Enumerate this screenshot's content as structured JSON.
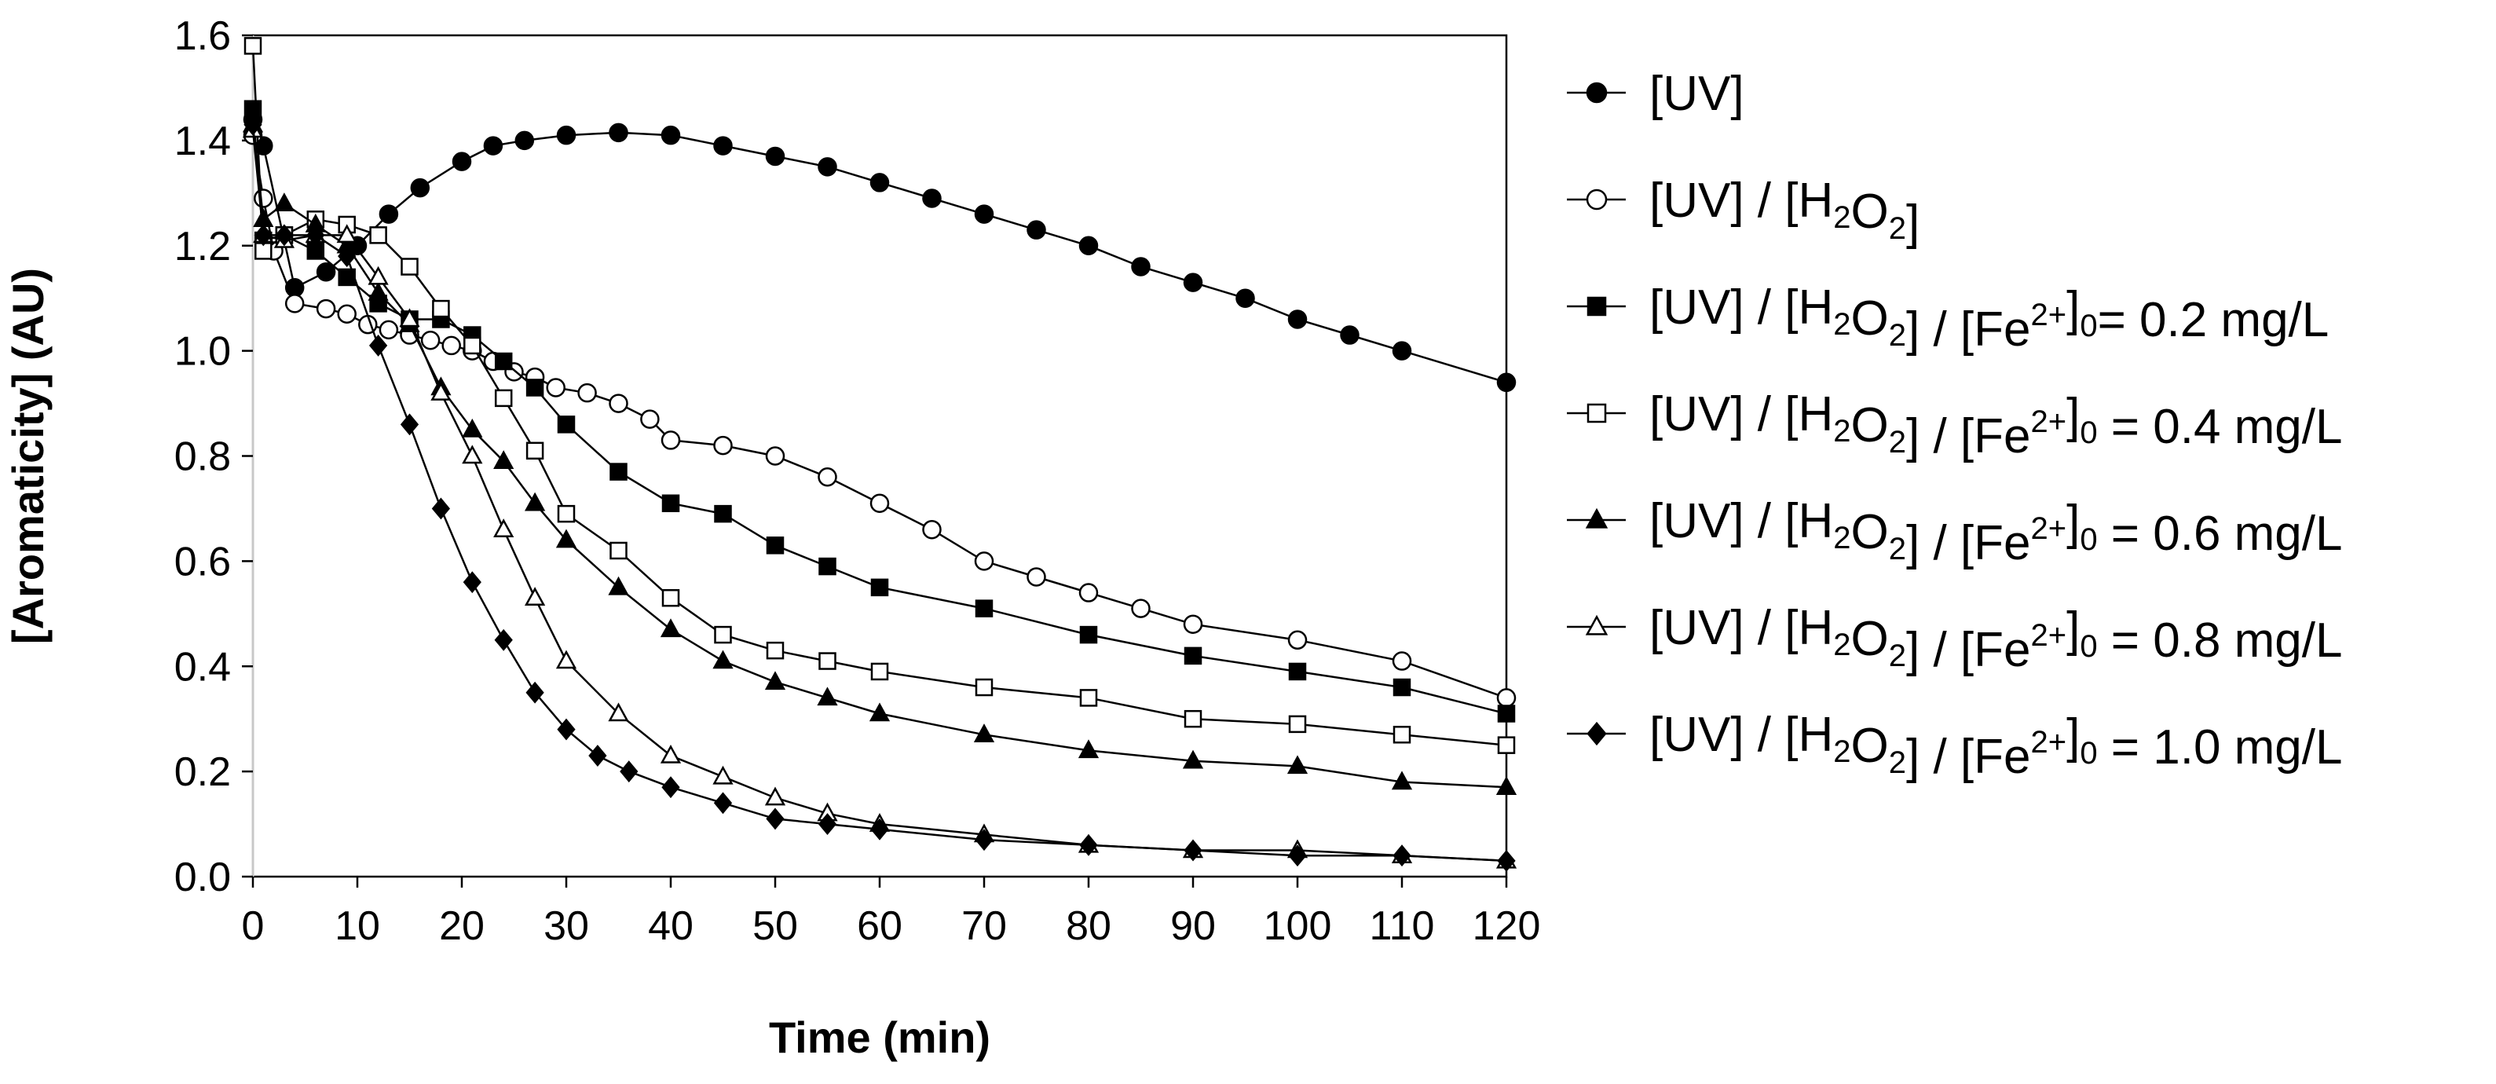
{
  "chart_data": {
    "type": "line",
    "title": "",
    "xlabel": "Time (min)",
    "ylabel": "[Aromaticity] (AU)",
    "xlim": [
      0,
      120
    ],
    "ylim": [
      0.0,
      1.6
    ],
    "xticks": [
      "0",
      "10",
      "20",
      "30",
      "40",
      "50",
      "60",
      "70",
      "80",
      "90",
      "100",
      "110",
      "120"
    ],
    "yticks": [
      "0.0",
      "0.2",
      "0.4",
      "0.6",
      "0.8",
      "1.0",
      "1.2",
      "1.4",
      "1.6"
    ],
    "grid": false,
    "legend_position": "right",
    "series": [
      {
        "name": "[UV]",
        "legend": [
          {
            "t": "[UV]"
          }
        ],
        "marker": "circle",
        "filled": true,
        "x": [
          0,
          1,
          4,
          7,
          10,
          13,
          16,
          20,
          23,
          26,
          30,
          35,
          40,
          45,
          50,
          55,
          60,
          65,
          70,
          75,
          80,
          85,
          90,
          95,
          100,
          105,
          110,
          120
        ],
        "y": [
          1.44,
          1.39,
          1.12,
          1.15,
          1.2,
          1.26,
          1.31,
          1.36,
          1.39,
          1.4,
          1.41,
          1.415,
          1.41,
          1.39,
          1.37,
          1.35,
          1.32,
          1.29,
          1.26,
          1.23,
          1.2,
          1.16,
          1.13,
          1.1,
          1.06,
          1.03,
          1.0,
          0.94
        ]
      },
      {
        "name": "[UV] / [H2O2]",
        "legend": [
          {
            "t": "[UV] / [H"
          },
          {
            "t": "2",
            "sub": true
          },
          {
            "t": "O"
          },
          {
            "t": "2",
            "sub": true
          },
          {
            "t": "]"
          }
        ],
        "marker": "circle",
        "filled": false,
        "x": [
          0,
          1,
          2,
          4,
          7,
          9,
          11,
          13,
          15,
          17,
          19,
          21,
          23,
          25,
          27,
          29,
          32,
          35,
          38,
          40,
          45,
          50,
          55,
          60,
          65,
          70,
          75,
          80,
          85,
          90,
          100,
          110,
          120
        ],
        "y": [
          1.41,
          1.29,
          1.19,
          1.09,
          1.08,
          1.07,
          1.05,
          1.04,
          1.03,
          1.02,
          1.01,
          1.0,
          0.98,
          0.96,
          0.95,
          0.93,
          0.92,
          0.9,
          0.87,
          0.83,
          0.82,
          0.8,
          0.76,
          0.71,
          0.66,
          0.6,
          0.57,
          0.54,
          0.51,
          0.48,
          0.45,
          0.41,
          0.34
        ]
      },
      {
        "name": "[UV] / [H2O2] / [Fe2+]0= 0.2 mg/L",
        "legend": [
          {
            "t": "[UV] / [H"
          },
          {
            "t": "2",
            "sub": true
          },
          {
            "t": "O"
          },
          {
            "t": "2",
            "sub": true
          },
          {
            "t": "] / [Fe"
          },
          {
            "t": "2+",
            "sup": true
          },
          {
            "t": "]"
          },
          {
            "t": "0",
            "sub": true
          },
          {
            "t": "= 0.2 mg/L"
          }
        ],
        "marker": "square",
        "filled": true,
        "x": [
          0,
          1,
          3,
          6,
          9,
          12,
          15,
          18,
          21,
          24,
          27,
          30,
          35,
          40,
          45,
          50,
          55,
          60,
          70,
          80,
          90,
          100,
          110,
          120
        ],
        "y": [
          1.46,
          1.21,
          1.22,
          1.19,
          1.14,
          1.09,
          1.06,
          1.06,
          1.03,
          0.98,
          0.93,
          0.86,
          0.77,
          0.71,
          0.69,
          0.63,
          0.59,
          0.55,
          0.51,
          0.46,
          0.42,
          0.39,
          0.36,
          0.31
        ]
      },
      {
        "name": "[UV] / [H2O2] / [Fe2+]0 = 0.4 mg/L",
        "legend": [
          {
            "t": "[UV] / [H"
          },
          {
            "t": "2",
            "sub": true
          },
          {
            "t": "O"
          },
          {
            "t": "2",
            "sub": true
          },
          {
            "t": "] / [Fe"
          },
          {
            "t": "2+",
            "sup": true
          },
          {
            "t": "]"
          },
          {
            "t": "0",
            "sub": true
          },
          {
            "t": " = 0.4 mg/L"
          }
        ],
        "marker": "square",
        "filled": false,
        "x": [
          0,
          1,
          3,
          6,
          9,
          12,
          15,
          18,
          21,
          24,
          27,
          30,
          35,
          40,
          45,
          50,
          55,
          60,
          70,
          80,
          90,
          100,
          110,
          120
        ],
        "y": [
          1.58,
          1.19,
          1.22,
          1.25,
          1.24,
          1.22,
          1.16,
          1.08,
          1.01,
          0.91,
          0.81,
          0.69,
          0.62,
          0.53,
          0.46,
          0.43,
          0.41,
          0.39,
          0.36,
          0.34,
          0.3,
          0.29,
          0.27,
          0.25
        ]
      },
      {
        "name": "[UV] / [H2O2] / [Fe2+]0 = 0.6 mg/L",
        "legend": [
          {
            "t": "[UV] / [H"
          },
          {
            "t": "2",
            "sub": true
          },
          {
            "t": "O"
          },
          {
            "t": "2",
            "sub": true
          },
          {
            "t": "] / [Fe"
          },
          {
            "t": "2+",
            "sup": true
          },
          {
            "t": "]"
          },
          {
            "t": "0",
            "sub": true
          },
          {
            "t": " = 0.6 mg/L"
          }
        ],
        "marker": "triangle",
        "filled": true,
        "x": [
          0,
          1,
          3,
          6,
          9,
          12,
          15,
          18,
          21,
          24,
          27,
          30,
          35,
          40,
          45,
          50,
          55,
          60,
          70,
          80,
          90,
          100,
          110,
          120
        ],
        "y": [
          1.43,
          1.25,
          1.28,
          1.24,
          1.2,
          1.11,
          1.05,
          0.93,
          0.85,
          0.79,
          0.71,
          0.64,
          0.55,
          0.47,
          0.41,
          0.37,
          0.34,
          0.31,
          0.27,
          0.24,
          0.22,
          0.21,
          0.18,
          0.17
        ]
      },
      {
        "name": "[UV] / [H2O2] / [Fe2+]0 = 0.8 mg/L",
        "legend": [
          {
            "t": "[UV] / [H"
          },
          {
            "t": "2",
            "sub": true
          },
          {
            "t": "O"
          },
          {
            "t": "2",
            "sub": true
          },
          {
            "t": "] / [Fe"
          },
          {
            "t": "2+",
            "sup": true
          },
          {
            "t": "]"
          },
          {
            "t": "0",
            "sub": true
          },
          {
            "t": " = 0.8 mg/L"
          }
        ],
        "marker": "triangle",
        "filled": false,
        "x": [
          0,
          1,
          3,
          6,
          9,
          12,
          15,
          18,
          21,
          24,
          27,
          30,
          35,
          40,
          45,
          50,
          55,
          60,
          70,
          80,
          90,
          100,
          110,
          120
        ],
        "y": [
          1.42,
          1.22,
          1.21,
          1.22,
          1.22,
          1.14,
          1.06,
          0.92,
          0.8,
          0.66,
          0.53,
          0.41,
          0.31,
          0.23,
          0.19,
          0.15,
          0.12,
          0.1,
          0.08,
          0.06,
          0.05,
          0.05,
          0.04,
          0.03
        ]
      },
      {
        "name": "[UV] / [H2O2] / [Fe2+]0 = 1.0 mg/L",
        "legend": [
          {
            "t": "[UV] / [H"
          },
          {
            "t": "2",
            "sub": true
          },
          {
            "t": "O"
          },
          {
            "t": "2",
            "sub": true
          },
          {
            "t": "] / [Fe"
          },
          {
            "t": "2+",
            "sup": true
          },
          {
            "t": "]"
          },
          {
            "t": "0",
            "sub": true
          },
          {
            "t": " = 1.0 mg/L"
          }
        ],
        "marker": "diamond",
        "filled": true,
        "x": [
          0,
          1,
          3,
          6,
          9,
          12,
          15,
          18,
          21,
          24,
          27,
          30,
          33,
          36,
          40,
          45,
          50,
          55,
          60,
          70,
          80,
          90,
          100,
          110,
          120
        ],
        "y": [
          1.43,
          1.22,
          1.22,
          1.22,
          1.18,
          1.01,
          0.86,
          0.7,
          0.56,
          0.45,
          0.35,
          0.28,
          0.23,
          0.2,
          0.17,
          0.14,
          0.11,
          0.1,
          0.09,
          0.07,
          0.06,
          0.05,
          0.04,
          0.04,
          0.03
        ]
      }
    ]
  }
}
